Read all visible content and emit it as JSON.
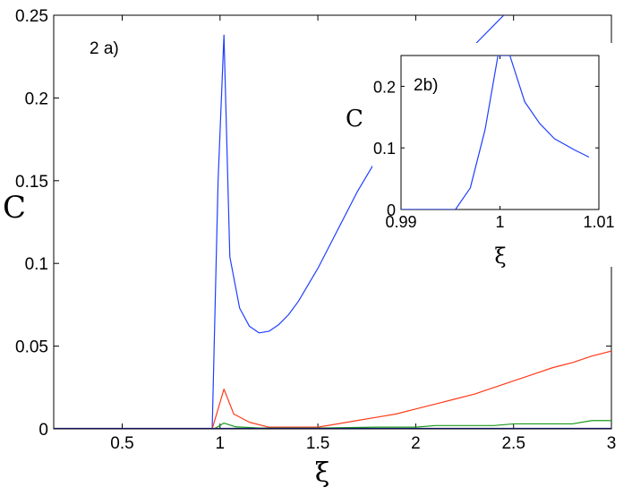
{
  "chart_data": [
    {
      "type": "line",
      "panel_label": "2 a)",
      "xlabel": "ξ",
      "ylabel": "C",
      "xlim": [
        0.15,
        3
      ],
      "ylim": [
        0,
        0.25
      ],
      "xticks": [
        0.5,
        1,
        1.5,
        2,
        2.5,
        3
      ],
      "xtick_labels": [
        "0.5",
        "1",
        "1.5",
        "2",
        "2.5",
        "3"
      ],
      "yticks": [
        0,
        0.05,
        0.1,
        0.15,
        0.2,
        0.25
      ],
      "ytick_labels": [
        "0",
        "0.05",
        "0.1",
        "0.15",
        "0.2",
        "0.25"
      ],
      "grid": false,
      "series": [
        {
          "color": "#1f3fff",
          "x": [
            0.15,
            0.96,
            0.99,
            1.02,
            1.05,
            1.1,
            1.15,
            1.2,
            1.25,
            1.3,
            1.35,
            1.4,
            1.5,
            1.6,
            1.7,
            1.8,
            1.9,
            2.0,
            2.1,
            2.2,
            2.3,
            2.4,
            2.45
          ],
          "y": [
            0,
            0,
            0.15,
            0.238,
            0.104,
            0.073,
            0.062,
            0.058,
            0.059,
            0.063,
            0.069,
            0.077,
            0.097,
            0.12,
            0.143,
            0.163,
            0.18,
            0.195,
            0.208,
            0.22,
            0.232,
            0.244,
            0.25
          ]
        },
        {
          "color": "#ff3a1a",
          "x": [
            0.15,
            0.96,
            1.02,
            1.07,
            1.15,
            1.25,
            1.35,
            1.5,
            1.7,
            1.8,
            1.9,
            2.0,
            2.1,
            2.2,
            2.3,
            2.4,
            2.5,
            2.6,
            2.7,
            2.8,
            2.9,
            3.0
          ],
          "y": [
            0,
            0,
            0.024,
            0.009,
            0.004,
            0.001,
            0.001,
            0.001,
            0.005,
            0.007,
            0.009,
            0.012,
            0.015,
            0.018,
            0.021,
            0.025,
            0.029,
            0.033,
            0.037,
            0.04,
            0.044,
            0.047
          ]
        },
        {
          "color": "#1a9a1a",
          "x": [
            0.15,
            0.97,
            1.02,
            1.08,
            1.2,
            1.5,
            1.8,
            2.0,
            2.1,
            2.4,
            2.5,
            2.8,
            2.9,
            3.0
          ],
          "y": [
            0,
            0,
            0.0035,
            0.0012,
            0.0005,
            0.0005,
            0.001,
            0.001,
            0.002,
            0.002,
            0.003,
            0.003,
            0.005,
            0.005
          ]
        },
        {
          "color": "#101060",
          "x": [
            0.15,
            3.0
          ],
          "y": [
            0.0003,
            0.0003
          ]
        }
      ]
    },
    {
      "type": "line",
      "panel_label": "2b)",
      "xlabel": "ξ",
      "ylabel": "C",
      "xlim": [
        0.99,
        1.01
      ],
      "ylim": [
        0,
        0.25
      ],
      "xticks": [
        0.99,
        1,
        1.01
      ],
      "xtick_labels": [
        "0.99",
        "1",
        "1.01"
      ],
      "yticks": [
        0,
        0.1,
        0.2
      ],
      "ytick_labels": [
        "0",
        "0.1",
        "0.2"
      ],
      "grid": false,
      "series": [
        {
          "color": "#1f3fff",
          "x": [
            0.99,
            0.9955,
            0.997,
            0.9985,
            0.9998,
            1.001,
            1.0025,
            1.004,
            1.0055,
            1.0075,
            1.009
          ],
          "y": [
            0,
            0,
            0.035,
            0.13,
            0.25,
            0.25,
            0.175,
            0.14,
            0.115,
            0.097,
            0.085
          ]
        }
      ]
    }
  ]
}
